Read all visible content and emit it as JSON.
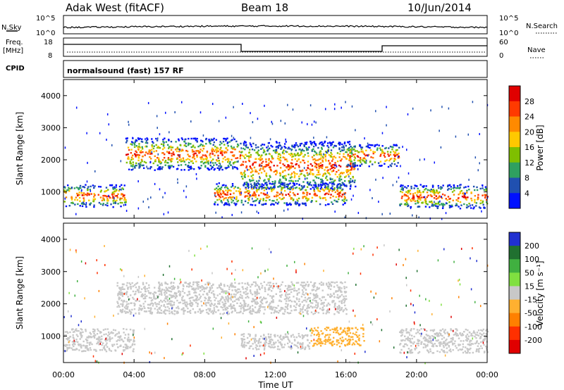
{
  "header": {
    "station": "Adak West (fitACF)",
    "beam": "Beam 18",
    "date": "10/Jun/2014"
  },
  "top_panels": {
    "nsky_label": "N.Sky",
    "nsky_ticks": [
      "10^5",
      "10^0"
    ],
    "nsearch_label": "N.Search",
    "nsearch_ticks": [
      "10^5",
      "10^0"
    ],
    "freq_label": "Freq.",
    "freq_unit": "[MHz]",
    "freq_ticks": [
      "18",
      "8"
    ],
    "nave_label": "Nave",
    "nave_ticks": [
      "60",
      "0"
    ],
    "cpid_label": "CPID",
    "cpid_value": "normalsound (fast) 157 RF"
  },
  "chart_data": [
    {
      "type": "heatmap",
      "name": "Power",
      "ylabel": "Slant Range [km]",
      "yticks": [
        "4000",
        "3000",
        "2000",
        "1000"
      ],
      "ylim": [
        180,
        4500
      ],
      "colorbar_label": "Power [dB]",
      "colorbar_ticks": [
        "28",
        "24",
        "20",
        "16",
        "12",
        "8",
        "4"
      ],
      "colorbar_colors": [
        "#e00000",
        "#ff3a00",
        "#ff8a00",
        "#ffc800",
        "#7fbf00",
        "#2fa060",
        "#2050b0",
        "#0010ff"
      ],
      "scatter_regions": [
        {
          "t": [
            0,
            3.5
          ],
          "r": [
            550,
            1250
          ],
          "level": 2
        },
        {
          "t": [
            3.5,
            10
          ],
          "r": [
            1700,
            2700
          ],
          "level": 2
        },
        {
          "t": [
            10,
            16.5
          ],
          "r": [
            1100,
            2600
          ],
          "level": 2
        },
        {
          "t": [
            8.5,
            16
          ],
          "r": [
            600,
            1300
          ],
          "level": 2
        },
        {
          "t": [
            16,
            19
          ],
          "r": [
            1800,
            2500
          ],
          "level": 1
        },
        {
          "t": [
            19,
            24
          ],
          "r": [
            500,
            1250
          ],
          "level": 2
        }
      ]
    },
    {
      "type": "heatmap",
      "name": "Velocity",
      "ylabel": "Slant Range [km]",
      "yticks": [
        "4000",
        "3000",
        "2000",
        "1000"
      ],
      "ylim": [
        180,
        4500
      ],
      "colorbar_label": "Velocity [m s⁻¹]",
      "colorbar_ticks": [
        "200",
        "100",
        "50",
        "15",
        "-15",
        "-50",
        "-100",
        "-200"
      ],
      "colorbar_colors": [
        "#2030d0",
        "#207030",
        "#40b040",
        "#80e040",
        "#c8c8c8",
        "#ffb030",
        "#ff8000",
        "#ff3000",
        "#e00000"
      ],
      "scatter_regions": [
        {
          "t": [
            0,
            4
          ],
          "r": [
            550,
            1250
          ],
          "color": "#c8c8c8"
        },
        {
          "t": [
            3,
            16
          ],
          "r": [
            1700,
            2700
          ],
          "color": "#c8c8c8"
        },
        {
          "t": [
            10,
            14
          ],
          "r": [
            600,
            1100
          ],
          "color": "#c8c8c8"
        },
        {
          "t": [
            14,
            17
          ],
          "r": [
            700,
            1300
          ],
          "color": "#ffb030"
        },
        {
          "t": [
            19,
            24
          ],
          "r": [
            500,
            1250
          ],
          "color": "#c8c8c8"
        }
      ]
    }
  ],
  "x_axis": {
    "label": "Time UT",
    "ticks": [
      "00:00",
      "04:00",
      "08:00",
      "12:00",
      "16:00",
      "20:00",
      "00:00"
    ],
    "range": [
      0,
      24
    ]
  }
}
